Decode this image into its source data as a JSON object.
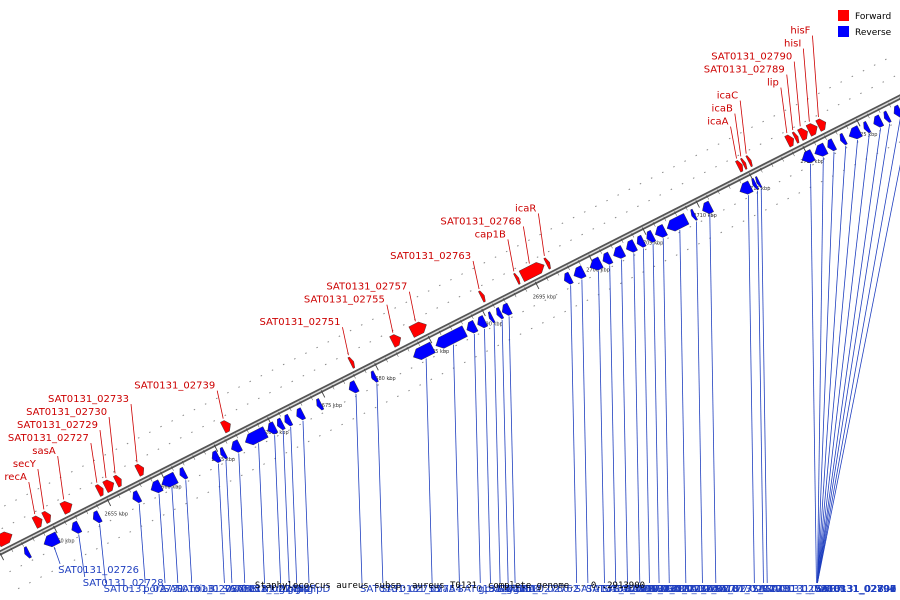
{
  "legend": {
    "forward": {
      "label": "Forward",
      "color": "#ff0000"
    },
    "reverse": {
      "label": "Reverse",
      "color": "#0000ff"
    }
  },
  "caption": "Staphylococcus aureus subsp. aureus T0131, complete genome. - 0..2913900",
  "genome_axis": {
    "start_kbp": 2645,
    "end_kbp": 2730
  },
  "ticks": [
    {
      "kbp": 2650,
      "label": "2650 kbp"
    },
    {
      "kbp": 2655,
      "label": "2655 kbp"
    },
    {
      "kbp": 2660,
      "label": "2660 kbp"
    },
    {
      "kbp": 2665,
      "label": "2665 kbp"
    },
    {
      "kbp": 2670,
      "label": "2670 kbp"
    },
    {
      "kbp": 2675,
      "label": "2675 kbp"
    },
    {
      "kbp": 2680,
      "label": "2680 kbp"
    },
    {
      "kbp": 2685,
      "label": "2685 kbp"
    },
    {
      "kbp": 2690,
      "label": "2690 kbp"
    },
    {
      "kbp": 2695,
      "label": "2695 kbp"
    },
    {
      "kbp": 2700,
      "label": "2700 kbp"
    },
    {
      "kbp": 2705,
      "label": "2705 kbp"
    },
    {
      "kbp": 2710,
      "label": "2710 kbp"
    },
    {
      "kbp": 2715,
      "label": "2715 kbp"
    },
    {
      "kbp": 2720,
      "label": "2720 kbp"
    },
    {
      "kbp": 2725,
      "label": "2725 kbp"
    }
  ],
  "forward_genes": [
    {
      "start": 2645.3,
      "end": 2646.6,
      "label": ""
    },
    {
      "start": 2648.7,
      "end": 2649.4,
      "label": "recA"
    },
    {
      "start": 2649.6,
      "end": 2650.2,
      "label": "secY"
    },
    {
      "start": 2651.3,
      "end": 2652.2,
      "label": "sasA"
    },
    {
      "start": 2654.6,
      "end": 2655.1,
      "label": "SAT0131_02727"
    },
    {
      "start": 2655.3,
      "end": 2656.1,
      "label": "SAT0131_02729"
    },
    {
      "start": 2656.3,
      "end": 2656.8,
      "label": "SAT0131_02730"
    },
    {
      "start": 2658.3,
      "end": 2658.9,
      "label": "SAT0131_02733"
    },
    {
      "start": 2666.3,
      "end": 2667.0,
      "label": "SAT0131_02739"
    },
    {
      "start": 2678.2,
      "end": 2678.5,
      "label": "SAT0131_02751"
    },
    {
      "start": 2682.1,
      "end": 2682.9,
      "label": "SAT0131_02755"
    },
    {
      "start": 2683.9,
      "end": 2685.3,
      "label": "SAT0131_02757"
    },
    {
      "start": 2690.4,
      "end": 2690.7,
      "label": "SAT0131_02763"
    },
    {
      "start": 2693.7,
      "end": 2693.9,
      "label": "cap1B"
    },
    {
      "start": 2694.2,
      "end": 2696.3,
      "label": "SAT0131_02768"
    },
    {
      "start": 2696.5,
      "end": 2696.8,
      "label": "icaR"
    },
    {
      "start": 2714.4,
      "end": 2714.8,
      "label": "icaA"
    },
    {
      "start": 2714.9,
      "end": 2715.1,
      "label": "icaB"
    },
    {
      "start": 2715.4,
      "end": 2715.6,
      "label": "icaC"
    },
    {
      "start": 2719.0,
      "end": 2719.6,
      "label": "lip"
    },
    {
      "start": 2719.7,
      "end": 2720.0,
      "label": "SAT0131_02789"
    },
    {
      "start": 2720.2,
      "end": 2720.9,
      "label": "SAT0131_02790"
    },
    {
      "start": 2721.0,
      "end": 2721.8,
      "label": "hisI"
    },
    {
      "start": 2721.9,
      "end": 2722.6,
      "label": "hisF"
    }
  ],
  "reverse_genes": [
    {
      "start": 2646.8,
      "end": 2647.2,
      "label": ""
    },
    {
      "start": 2648.6,
      "end": 2649.9,
      "label": "SAT0131_02726"
    },
    {
      "start": 2651.2,
      "end": 2651.9,
      "label": "SAT0131_02728"
    },
    {
      "start": 2653.2,
      "end": 2653.8,
      "label": "SAT0131_02731"
    },
    {
      "start": 2656.9,
      "end": 2657.5,
      "label": "porA"
    },
    {
      "start": 2658.6,
      "end": 2659.5,
      "label": "SAT0131_02736"
    },
    {
      "start": 2659.6,
      "end": 2660.9,
      "label": "SAT0131_02738"
    },
    {
      "start": 2661.3,
      "end": 2661.8,
      "label": "miaB"
    },
    {
      "start": 2664.3,
      "end": 2664.9,
      "label": "SAT0131_02741"
    },
    {
      "start": 2665.1,
      "end": 2665.5,
      "label": "SAT0131_02742"
    },
    {
      "start": 2666.1,
      "end": 2666.9,
      "label": "hexA"
    },
    {
      "start": 2667.4,
      "end": 2669.3,
      "label": "mutL"
    },
    {
      "start": 2669.5,
      "end": 2670.2,
      "label": "glpP"
    },
    {
      "start": 2670.4,
      "end": 2670.9,
      "label": "glpK"
    },
    {
      "start": 2671.1,
      "end": 2671.6,
      "label": "glpF"
    },
    {
      "start": 2672.2,
      "end": 2672.8,
      "label": "glpD"
    },
    {
      "start": 2674.1,
      "end": 2674.5,
      "label": ""
    },
    {
      "start": 2677.1,
      "end": 2677.8,
      "label": "SAT0131_02753"
    },
    {
      "start": 2679.2,
      "end": 2679.6,
      "label": "SAT0131_02754"
    },
    {
      "start": 2683.1,
      "end": 2684.9,
      "label": "miaA"
    },
    {
      "start": 2685.2,
      "end": 2687.9,
      "label": "SAT0131_02758"
    },
    {
      "start": 2688.1,
      "end": 2688.9,
      "label": "gpxA1"
    },
    {
      "start": 2689.1,
      "end": 2689.8,
      "label": "SAT0131_02760"
    },
    {
      "start": 2690.2,
      "end": 2690.5,
      "label": "SAT0131_02762"
    },
    {
      "start": 2690.9,
      "end": 2691.3,
      "label": "glnR"
    },
    {
      "start": 2691.4,
      "end": 2692.1,
      "label": "glnA"
    },
    {
      "start": 2697.2,
      "end": 2697.8,
      "label": "SAT0131_02766"
    },
    {
      "start": 2698.1,
      "end": 2699.0,
      "label": "SAT0131_02770"
    },
    {
      "start": 2699.6,
      "end": 2700.6,
      "label": "SAT0131_02771"
    },
    {
      "start": 2700.8,
      "end": 2701.5,
      "label": "SAT0131_02772"
    },
    {
      "start": 2701.8,
      "end": 2702.7,
      "label": "SAT0131_02773"
    },
    {
      "start": 2703.0,
      "end": 2703.8,
      "label": "SAT0131_02774"
    },
    {
      "start": 2704.0,
      "end": 2704.6,
      "label": "SAT0131_02775"
    },
    {
      "start": 2704.9,
      "end": 2705.5,
      "label": "SAT0131_02776"
    },
    {
      "start": 2705.7,
      "end": 2706.6,
      "label": "SAT0131_02777"
    },
    {
      "start": 2706.8,
      "end": 2708.6,
      "label": "SAT0131_02778"
    },
    {
      "start": 2709.1,
      "end": 2709.4,
      "label": "SAT0131_02779"
    },
    {
      "start": 2710.1,
      "end": 2710.9,
      "label": "SAT0131_02780"
    },
    {
      "start": 2713.6,
      "end": 2714.6,
      "label": "SAT0131_02786"
    },
    {
      "start": 2714.8,
      "end": 2715.1,
      "label": "SAT0131_02787"
    },
    {
      "start": 2715.2,
      "end": 2715.4,
      "label": "SAT0131_02788"
    },
    {
      "start": 2719.4,
      "end": 2720.4,
      "label": "SAT0131_02794"
    },
    {
      "start": 2720.6,
      "end": 2721.6,
      "label": "SAT0131_02795"
    },
    {
      "start": 2721.8,
      "end": 2722.4,
      "label": "SAT0131_02796"
    },
    {
      "start": 2723.0,
      "end": 2723.4,
      "label": "SAT0131_02797"
    },
    {
      "start": 2723.8,
      "end": 2724.8,
      "label": "SAT0131_02798"
    },
    {
      "start": 2725.2,
      "end": 2725.6,
      "label": "SAT0131_02799"
    },
    {
      "start": 2726.1,
      "end": 2726.8,
      "label": "SAT0131_02800"
    },
    {
      "start": 2727.1,
      "end": 2727.5,
      "label": "SAT0131_02801"
    },
    {
      "start": 2728.0,
      "end": 2728.6,
      "label": "SAT0131_02802"
    },
    {
      "start": 2729.0,
      "end": 2729.5,
      "label": "SAT0131_02805"
    }
  ]
}
